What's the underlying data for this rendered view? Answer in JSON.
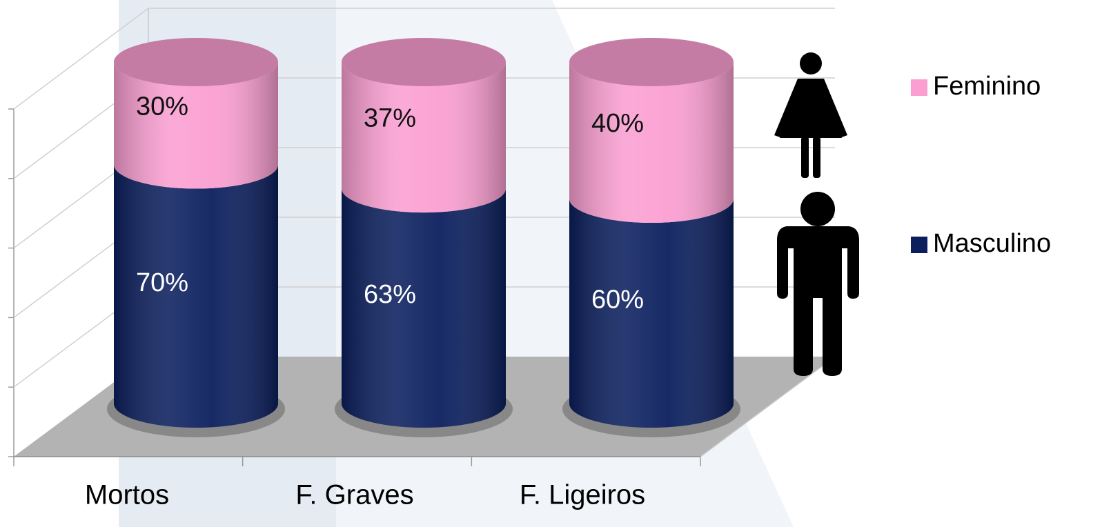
{
  "chart_data": {
    "type": "stacked-cylinder",
    "categories": [
      "Mortos",
      "F. Graves",
      "F. Ligeiros"
    ],
    "series": [
      {
        "name": "Masculino",
        "color": "#0b1f5e",
        "values": [
          70,
          63,
          60
        ],
        "value_labels": [
          "70%",
          "63%",
          "60%"
        ]
      },
      {
        "name": "Feminino",
        "color": "#fb9fd2",
        "values": [
          30,
          37,
          40
        ],
        "value_labels": [
          "30%",
          "37%",
          "40%"
        ]
      }
    ],
    "ylim": [
      0,
      100
    ],
    "yticks": [
      0,
      20,
      40,
      60,
      80,
      100
    ],
    "grid": true,
    "legend": "right"
  }
}
